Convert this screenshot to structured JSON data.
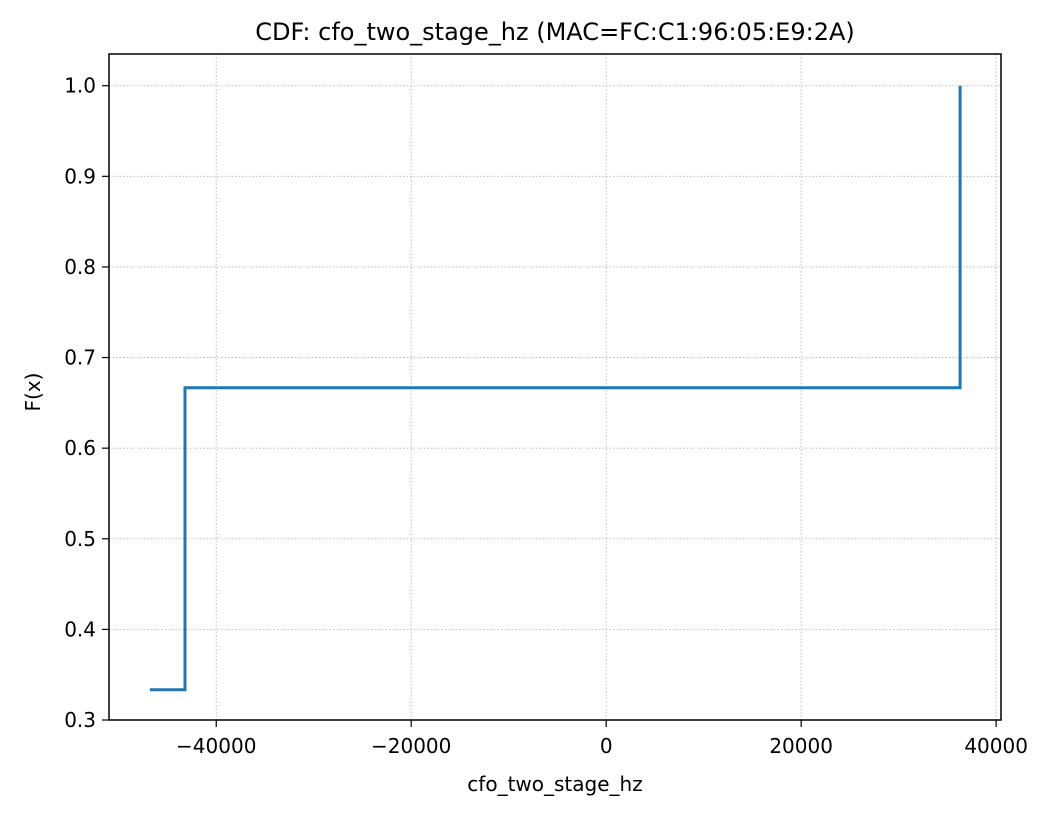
{
  "chart_data": {
    "type": "line",
    "step": true,
    "title": "CDF: cfo_two_stage_hz (MAC=FC:C1:96:05:E9:2A)",
    "xlabel": "cfo_two_stage_hz",
    "ylabel": "F(x)",
    "xlim": [
      -51000,
      40500
    ],
    "ylim": [
      0.3,
      1.035
    ],
    "xticks": [
      -40000,
      -20000,
      0,
      20000,
      40000
    ],
    "xtick_labels": [
      "−40000",
      "−20000",
      "0",
      "20000",
      "40000"
    ],
    "yticks": [
      0.3,
      0.4,
      0.5,
      0.6,
      0.7,
      0.8,
      0.9,
      1.0
    ],
    "ytick_labels": [
      "0.3",
      "0.4",
      "0.5",
      "0.6",
      "0.7",
      "0.8",
      "0.9",
      "1.0"
    ],
    "grid": true,
    "series": [
      {
        "x": [
          -46800,
          -43200,
          -43200,
          36300,
          36300
        ],
        "y": [
          0.3333,
          0.3333,
          0.6667,
          0.6667,
          1.0
        ],
        "color": "#1f77b4"
      }
    ]
  }
}
